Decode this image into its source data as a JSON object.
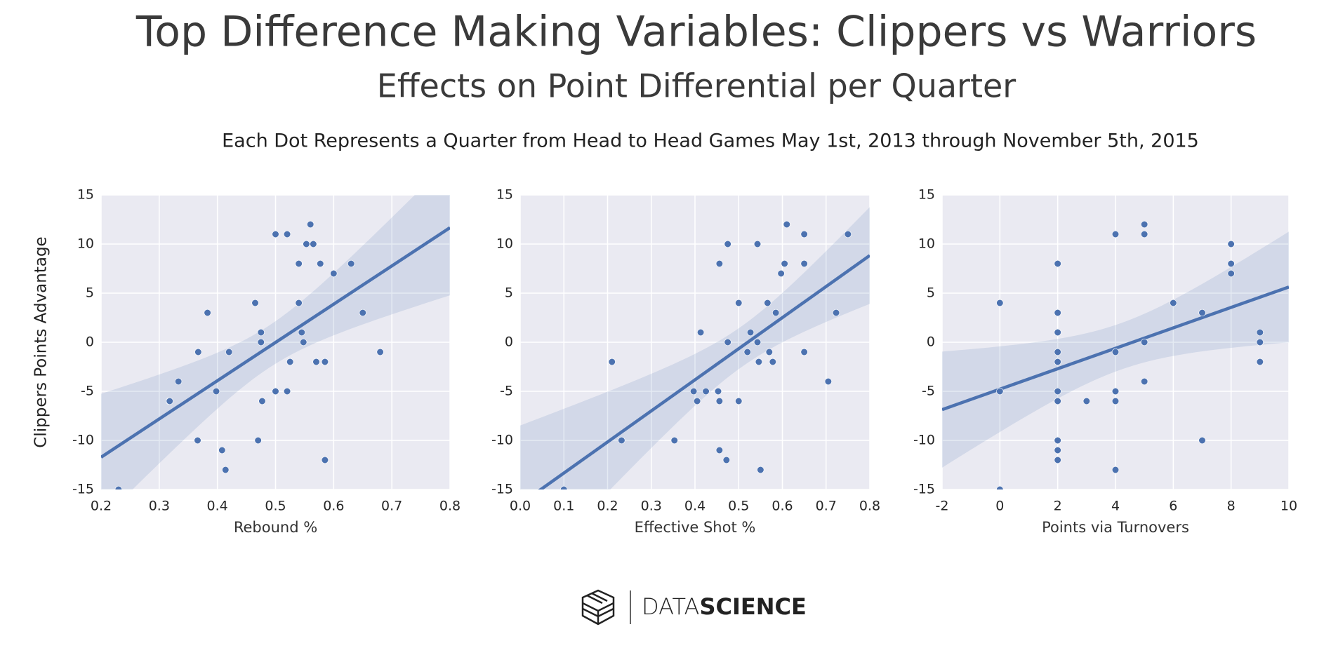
{
  "title": "Top Difference Making Variables: Clippers vs Warriors",
  "subtitle": "Effects on Point Differential per Quarter",
  "caption": "Each Dot Represents a Quarter from Head to Head Games May 1st, 2013 through November 5th, 2015",
  "logo_text": [
    "DATA",
    "SCIENCE"
  ],
  "chart_data": [
    {
      "type": "scatter",
      "xlabel": "Rebound %",
      "ylabel": "Clippers Points Advantage",
      "color": "#4c72b0",
      "grid": true,
      "xlim": [
        0.2,
        0.8
      ],
      "ylim": [
        -15,
        15
      ],
      "xticks": [
        0.2,
        0.3,
        0.4,
        0.5,
        0.6,
        0.7,
        0.8
      ],
      "yticks": [
        -15,
        -10,
        -5,
        0,
        5,
        10,
        15
      ],
      "x": [
        0.23,
        0.317,
        0.318,
        0.333,
        0.366,
        0.367,
        0.383,
        0.398,
        0.408,
        0.414,
        0.42,
        0.465,
        0.47,
        0.475,
        0.475,
        0.477,
        0.5,
        0.5,
        0.52,
        0.52,
        0.525,
        0.54,
        0.54,
        0.545,
        0.548,
        0.553,
        0.56,
        0.565,
        0.57,
        0.577,
        0.585,
        0.585,
        0.6,
        0.63,
        0.65,
        0.68
      ],
      "values": [
        -15,
        -6,
        -6,
        -4,
        -10,
        -1,
        3,
        -5,
        -11,
        -13,
        -1,
        4,
        -10,
        1,
        0,
        -6,
        -5,
        11,
        11,
        -5,
        -2,
        8,
        4,
        1,
        0,
        10,
        12,
        10,
        -2,
        8,
        -2,
        -12,
        7,
        8,
        3,
        -1
      ]
    },
    {
      "type": "scatter",
      "xlabel": "Effective Shot %",
      "color": "#4c72b0",
      "grid": true,
      "xlim": [
        0,
        0.8
      ],
      "ylim": [
        -15,
        15
      ],
      "xticks": [
        {
          "value": 0,
          "label": "0.0"
        },
        0.1,
        0.2,
        0.3,
        0.4,
        0.5,
        0.6,
        0.7,
        0.8
      ],
      "yticks": [
        -15,
        -10,
        -5,
        0,
        5,
        10,
        15
      ],
      "x": [
        0.1,
        0.21,
        0.232,
        0.353,
        0.397,
        0.405,
        0.413,
        0.425,
        0.453,
        0.456,
        0.456,
        0.456,
        0.472,
        0.475,
        0.475,
        0.5,
        0.5,
        0.52,
        0.527,
        0.543,
        0.543,
        0.546,
        0.55,
        0.566,
        0.57,
        0.578,
        0.585,
        0.597,
        0.605,
        0.61,
        0.65,
        0.65,
        0.65,
        0.705,
        0.723,
        0.75
      ],
      "values": [
        -15,
        -2,
        -10,
        -10,
        -5,
        -6,
        1,
        -5,
        -5,
        -6,
        -11,
        8,
        -12,
        10,
        0,
        -6,
        4,
        -1,
        1,
        10,
        0,
        -2,
        -13,
        4,
        -1,
        -2,
        3,
        7,
        8,
        12,
        11,
        8,
        -1,
        -4,
        3,
        11
      ]
    },
    {
      "type": "scatter",
      "xlabel": "Points via Turnovers",
      "color": "#4c72b0",
      "grid": true,
      "xlim": [
        -2,
        10
      ],
      "ylim": [
        -15,
        15
      ],
      "xticks": [
        -2,
        0,
        2,
        4,
        6,
        8,
        10
      ],
      "yticks": [
        -15,
        -10,
        -5,
        0,
        5,
        10,
        15
      ],
      "x": [
        0,
        0,
        0,
        2,
        2,
        2,
        2,
        2,
        2,
        2,
        2,
        2,
        2,
        2,
        2,
        3,
        4,
        4,
        4,
        4,
        4,
        4,
        5,
        5,
        5,
        5,
        6,
        7,
        7,
        8,
        8,
        8,
        8,
        9,
        9,
        9
      ],
      "values": [
        4,
        -5,
        -15,
        8,
        8,
        3,
        1,
        -1,
        -2,
        -2,
        -5,
        -6,
        -10,
        -11,
        -12,
        -6,
        11,
        -1,
        -1,
        -5,
        -6,
        -13,
        12,
        11,
        0,
        -4,
        4,
        3,
        -10,
        10,
        10,
        8,
        7,
        1,
        0,
        -2
      ]
    }
  ]
}
